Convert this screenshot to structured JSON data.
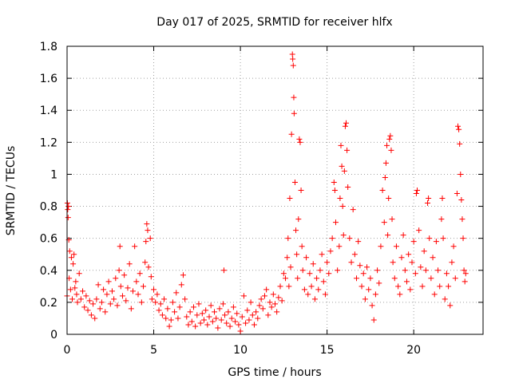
{
  "chart_data": {
    "type": "scatter",
    "title": "Day 017 of 2025, SRMTID for receiver hlfx",
    "xlabel": "GPS time / hours",
    "ylabel": "SRMTID / TECUs",
    "xlim": [
      0,
      24
    ],
    "ylim": [
      0,
      1.8
    ],
    "x_ticks": [
      0,
      5,
      10,
      15,
      20
    ],
    "y_ticks": [
      0,
      0.2,
      0.4,
      0.6,
      0.8,
      1,
      1.2,
      1.4,
      1.6,
      1.8
    ],
    "x_tick_labels": [
      "0",
      "5",
      "10",
      "15",
      "20"
    ],
    "y_tick_labels": [
      "0",
      "0.2",
      "0.4",
      "0.6",
      "0.8",
      "1",
      "1.2",
      "1.4",
      "1.6",
      "1.8"
    ],
    "grid": true,
    "marker": "+",
    "color": "#ff0000",
    "points": [
      [
        0.0,
        0.24
      ],
      [
        0.02,
        0.82
      ],
      [
        0.04,
        0.78
      ],
      [
        0.06,
        0.73
      ],
      [
        0.08,
        0.8
      ],
      [
        0.1,
        0.59
      ],
      [
        0.12,
        0.35
      ],
      [
        0.15,
        0.52
      ],
      [
        0.2,
        0.28
      ],
      [
        0.25,
        0.48
      ],
      [
        0.3,
        0.22
      ],
      [
        0.35,
        0.44
      ],
      [
        0.4,
        0.5
      ],
      [
        0.45,
        0.29
      ],
      [
        0.5,
        0.33
      ],
      [
        0.55,
        0.25
      ],
      [
        0.6,
        0.2
      ],
      [
        0.7,
        0.38
      ],
      [
        0.8,
        0.22
      ],
      [
        0.9,
        0.27
      ],
      [
        1.0,
        0.17
      ],
      [
        1.1,
        0.24
      ],
      [
        1.2,
        0.15
      ],
      [
        1.3,
        0.21
      ],
      [
        1.4,
        0.12
      ],
      [
        1.5,
        0.19
      ],
      [
        1.6,
        0.1
      ],
      [
        1.7,
        0.22
      ],
      [
        1.8,
        0.31
      ],
      [
        1.9,
        0.16
      ],
      [
        2.0,
        0.2
      ],
      [
        2.1,
        0.28
      ],
      [
        2.2,
        0.14
      ],
      [
        2.3,
        0.25
      ],
      [
        2.4,
        0.33
      ],
      [
        2.5,
        0.19
      ],
      [
        2.6,
        0.27
      ],
      [
        2.7,
        0.22
      ],
      [
        2.8,
        0.35
      ],
      [
        2.9,
        0.18
      ],
      [
        3.0,
        0.4
      ],
      [
        3.05,
        0.55
      ],
      [
        3.1,
        0.3
      ],
      [
        3.2,
        0.24
      ],
      [
        3.3,
        0.37
      ],
      [
        3.4,
        0.21
      ],
      [
        3.5,
        0.29
      ],
      [
        3.6,
        0.44
      ],
      [
        3.7,
        0.16
      ],
      [
        3.8,
        0.27
      ],
      [
        3.9,
        0.55
      ],
      [
        4.0,
        0.33
      ],
      [
        4.1,
        0.25
      ],
      [
        4.2,
        0.38
      ],
      [
        4.3,
        0.2
      ],
      [
        4.4,
        0.3
      ],
      [
        4.5,
        0.45
      ],
      [
        4.55,
        0.58
      ],
      [
        4.6,
        0.69
      ],
      [
        4.65,
        0.65
      ],
      [
        4.7,
        0.42
      ],
      [
        4.8,
        0.6
      ],
      [
        4.85,
        0.36
      ],
      [
        4.9,
        0.22
      ],
      [
        5.0,
        0.28
      ],
      [
        5.1,
        0.2
      ],
      [
        5.2,
        0.25
      ],
      [
        5.3,
        0.15
      ],
      [
        5.4,
        0.19
      ],
      [
        5.5,
        0.12
      ],
      [
        5.6,
        0.22
      ],
      [
        5.7,
        0.1
      ],
      [
        5.8,
        0.16
      ],
      [
        5.9,
        0.05
      ],
      [
        6.0,
        0.09
      ],
      [
        6.1,
        0.2
      ],
      [
        6.2,
        0.14
      ],
      [
        6.3,
        0.26
      ],
      [
        6.4,
        0.1
      ],
      [
        6.5,
        0.17
      ],
      [
        6.6,
        0.31
      ],
      [
        6.7,
        0.37
      ],
      [
        6.8,
        0.22
      ],
      [
        6.9,
        0.11
      ],
      [
        7.0,
        0.06
      ],
      [
        7.1,
        0.14
      ],
      [
        7.2,
        0.08
      ],
      [
        7.3,
        0.17
      ],
      [
        7.4,
        0.05
      ],
      [
        7.5,
        0.12
      ],
      [
        7.6,
        0.19
      ],
      [
        7.7,
        0.07
      ],
      [
        7.8,
        0.13
      ],
      [
        7.9,
        0.09
      ],
      [
        8.0,
        0.15
      ],
      [
        8.1,
        0.06
      ],
      [
        8.2,
        0.11
      ],
      [
        8.3,
        0.18
      ],
      [
        8.4,
        0.08
      ],
      [
        8.5,
        0.14
      ],
      [
        8.6,
        0.1
      ],
      [
        8.7,
        0.04
      ],
      [
        8.8,
        0.16
      ],
      [
        8.9,
        0.09
      ],
      [
        9.0,
        0.19
      ],
      [
        9.05,
        0.4
      ],
      [
        9.1,
        0.12
      ],
      [
        9.2,
        0.07
      ],
      [
        9.3,
        0.14
      ],
      [
        9.4,
        0.05
      ],
      [
        9.5,
        0.1
      ],
      [
        9.6,
        0.17
      ],
      [
        9.7,
        0.08
      ],
      [
        9.8,
        0.13
      ],
      [
        9.9,
        0.06
      ],
      [
        10.0,
        0.02
      ],
      [
        10.1,
        0.11
      ],
      [
        10.2,
        0.24
      ],
      [
        10.3,
        0.07
      ],
      [
        10.4,
        0.15
      ],
      [
        10.5,
        0.09
      ],
      [
        10.6,
        0.2
      ],
      [
        10.7,
        0.12
      ],
      [
        10.8,
        0.06
      ],
      [
        10.9,
        0.14
      ],
      [
        11.0,
        0.1
      ],
      [
        11.1,
        0.18
      ],
      [
        11.2,
        0.22
      ],
      [
        11.3,
        0.16
      ],
      [
        11.4,
        0.24
      ],
      [
        11.5,
        0.28
      ],
      [
        11.6,
        0.12
      ],
      [
        11.7,
        0.2
      ],
      [
        11.8,
        0.17
      ],
      [
        11.9,
        0.25
      ],
      [
        12.0,
        0.19
      ],
      [
        12.1,
        0.14
      ],
      [
        12.2,
        0.23
      ],
      [
        12.3,
        0.3
      ],
      [
        12.4,
        0.21
      ],
      [
        12.5,
        0.38
      ],
      [
        12.6,
        0.35
      ],
      [
        12.7,
        0.48
      ],
      [
        12.75,
        0.6
      ],
      [
        12.8,
        0.3
      ],
      [
        12.85,
        0.85
      ],
      [
        12.9,
        0.42
      ],
      [
        12.95,
        1.25
      ],
      [
        13.0,
        1.75
      ],
      [
        13.02,
        1.72
      ],
      [
        13.05,
        1.68
      ],
      [
        13.08,
        1.48
      ],
      [
        13.1,
        1.38
      ],
      [
        13.15,
        0.95
      ],
      [
        13.2,
        0.65
      ],
      [
        13.25,
        0.5
      ],
      [
        13.3,
        0.35
      ],
      [
        13.35,
        0.72
      ],
      [
        13.4,
        1.22
      ],
      [
        13.45,
        1.2
      ],
      [
        13.5,
        0.9
      ],
      [
        13.55,
        0.55
      ],
      [
        13.6,
        0.4
      ],
      [
        13.7,
        0.28
      ],
      [
        13.8,
        0.48
      ],
      [
        13.9,
        0.25
      ],
      [
        14.0,
        0.38
      ],
      [
        14.1,
        0.3
      ],
      [
        14.2,
        0.44
      ],
      [
        14.3,
        0.22
      ],
      [
        14.4,
        0.35
      ],
      [
        14.5,
        0.28
      ],
      [
        14.6,
        0.4
      ],
      [
        14.7,
        0.5
      ],
      [
        14.8,
        0.33
      ],
      [
        14.9,
        0.25
      ],
      [
        15.0,
        0.45
      ],
      [
        15.1,
        0.38
      ],
      [
        15.2,
        0.52
      ],
      [
        15.3,
        0.6
      ],
      [
        15.4,
        0.95
      ],
      [
        15.45,
        0.9
      ],
      [
        15.5,
        0.7
      ],
      [
        15.6,
        0.4
      ],
      [
        15.7,
        0.55
      ],
      [
        15.75,
        0.85
      ],
      [
        15.8,
        1.18
      ],
      [
        15.85,
        1.05
      ],
      [
        15.9,
        0.8
      ],
      [
        15.95,
        0.62
      ],
      [
        16.0,
        1.02
      ],
      [
        16.05,
        1.3
      ],
      [
        16.1,
        1.32
      ],
      [
        16.15,
        1.15
      ],
      [
        16.2,
        0.92
      ],
      [
        16.3,
        0.6
      ],
      [
        16.4,
        0.45
      ],
      [
        16.5,
        0.78
      ],
      [
        16.6,
        0.5
      ],
      [
        16.7,
        0.35
      ],
      [
        16.8,
        0.58
      ],
      [
        16.9,
        0.43
      ],
      [
        17.0,
        0.3
      ],
      [
        17.1,
        0.38
      ],
      [
        17.2,
        0.22
      ],
      [
        17.3,
        0.42
      ],
      [
        17.4,
        0.28
      ],
      [
        17.5,
        0.35
      ],
      [
        17.6,
        0.18
      ],
      [
        17.7,
        0.09
      ],
      [
        17.8,
        0.25
      ],
      [
        17.9,
        0.4
      ],
      [
        18.0,
        0.32
      ],
      [
        18.1,
        0.55
      ],
      [
        18.2,
        0.9
      ],
      [
        18.3,
        0.7
      ],
      [
        18.35,
        0.98
      ],
      [
        18.4,
        1.07
      ],
      [
        18.45,
        1.18
      ],
      [
        18.5,
        0.62
      ],
      [
        18.55,
        0.85
      ],
      [
        18.6,
        1.22
      ],
      [
        18.65,
        1.24
      ],
      [
        18.7,
        1.15
      ],
      [
        18.75,
        0.72
      ],
      [
        18.8,
        0.45
      ],
      [
        18.9,
        0.35
      ],
      [
        19.0,
        0.55
      ],
      [
        19.1,
        0.3
      ],
      [
        19.2,
        0.25
      ],
      [
        19.3,
        0.48
      ],
      [
        19.4,
        0.62
      ],
      [
        19.5,
        0.4
      ],
      [
        19.6,
        0.33
      ],
      [
        19.7,
        0.5
      ],
      [
        19.8,
        0.28
      ],
      [
        19.9,
        0.45
      ],
      [
        20.0,
        0.58
      ],
      [
        20.1,
        0.38
      ],
      [
        20.15,
        0.88
      ],
      [
        20.2,
        0.9
      ],
      [
        20.3,
        0.65
      ],
      [
        20.4,
        0.42
      ],
      [
        20.5,
        0.3
      ],
      [
        20.6,
        0.52
      ],
      [
        20.7,
        0.4
      ],
      [
        20.8,
        0.82
      ],
      [
        20.85,
        0.85
      ],
      [
        20.9,
        0.6
      ],
      [
        21.0,
        0.35
      ],
      [
        21.1,
        0.48
      ],
      [
        21.2,
        0.25
      ],
      [
        21.3,
        0.58
      ],
      [
        21.4,
        0.4
      ],
      [
        21.5,
        0.3
      ],
      [
        21.6,
        0.72
      ],
      [
        21.65,
        0.85
      ],
      [
        21.7,
        0.6
      ],
      [
        21.8,
        0.22
      ],
      [
        21.9,
        0.38
      ],
      [
        22.0,
        0.3
      ],
      [
        22.1,
        0.18
      ],
      [
        22.2,
        0.45
      ],
      [
        22.3,
        0.55
      ],
      [
        22.4,
        0.35
      ],
      [
        22.5,
        0.88
      ],
      [
        22.55,
        1.3
      ],
      [
        22.6,
        1.28
      ],
      [
        22.65,
        1.19
      ],
      [
        22.7,
        1.0
      ],
      [
        22.75,
        0.84
      ],
      [
        22.8,
        0.72
      ],
      [
        22.85,
        0.6
      ],
      [
        22.9,
        0.4
      ],
      [
        22.95,
        0.33
      ],
      [
        23.0,
        0.38
      ]
    ]
  }
}
